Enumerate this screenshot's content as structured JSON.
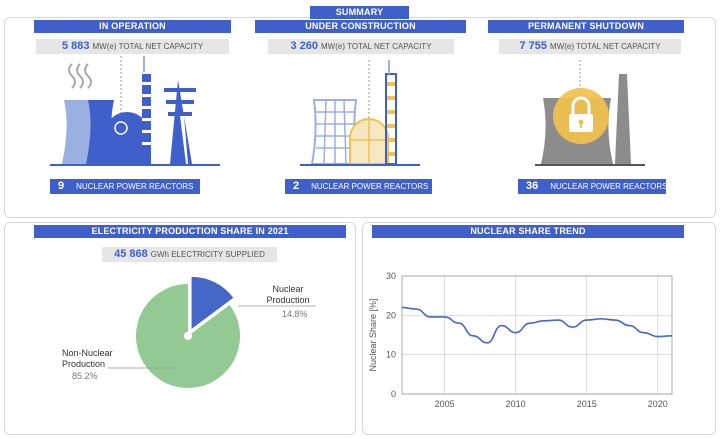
{
  "summary": {
    "title": "SUMMARY"
  },
  "in_operation": {
    "title": "IN OPERATION",
    "capacity_value": "5 883",
    "capacity_label": "MW(e) TOTAL NET CAPACITY",
    "reactors_value": "9",
    "reactors_label": "NUCLEAR POWER REACTORS"
  },
  "under_construction": {
    "title": "UNDER CONSTRUCTION",
    "capacity_value": "3 260",
    "capacity_label": "MW(e) TOTAL NET CAPACITY",
    "reactors_value": "2",
    "reactors_label": "NUCLEAR POWER REACTORS"
  },
  "permanent_shutdown": {
    "title": "PERMANENT SHUTDOWN",
    "capacity_value": "7 755",
    "capacity_label": "MW(e) TOTAL NET CAPACITY",
    "reactors_value": "36",
    "reactors_label": "NUCLEAR POWER REACTORS"
  },
  "electricity": {
    "title": "ELECTRICITY PRODUCTION SHARE IN 2021",
    "supplied_value": "45 868",
    "supplied_label": "GWh ELECTRICITY SUPPLIED",
    "nuclear_label_1": "Nuclear",
    "nuclear_label_2": "Production",
    "nuclear_pct": "14.8%",
    "non_nuclear_label_1": "Non-Nuclear",
    "non_nuclear_label_2": "Production",
    "non_nuclear_pct": "85.2%"
  },
  "trend": {
    "title": "NUCLEAR SHARE TREND"
  },
  "colors": {
    "accent": "#3f5fcb",
    "nuclear": "#4467c8",
    "non_nuclear": "#93c993",
    "icon_light": "#9ab0e0",
    "lock": "#f2c14e",
    "grey": "#8c8c8c"
  },
  "chart_data": [
    {
      "type": "pie",
      "labels": [
        "Nuclear Production",
        "Non-Nuclear Production"
      ],
      "values": [
        14.8,
        85.2
      ]
    },
    {
      "type": "line",
      "title": "NUCLEAR SHARE TREND",
      "xlabel": "",
      "ylabel": "Nuclear Share [%]",
      "xlim": [
        2002,
        2021
      ],
      "ylim": [
        0,
        30
      ],
      "xticks": [
        2005,
        2010,
        2015,
        2020
      ],
      "yticks": [
        0,
        10,
        20,
        30
      ],
      "grid": true,
      "x": [
        2002,
        2003,
        2004,
        2005,
        2006,
        2007,
        2008,
        2009,
        2010,
        2011,
        2012,
        2013,
        2014,
        2015,
        2016,
        2017,
        2018,
        2019,
        2020,
        2021
      ],
      "y": [
        22.0,
        21.6,
        19.6,
        19.6,
        18.0,
        14.8,
        13.0,
        17.4,
        15.6,
        18.0,
        18.6,
        18.8,
        17.0,
        18.8,
        19.1,
        18.8,
        17.4,
        15.6,
        14.6,
        14.8
      ]
    }
  ]
}
